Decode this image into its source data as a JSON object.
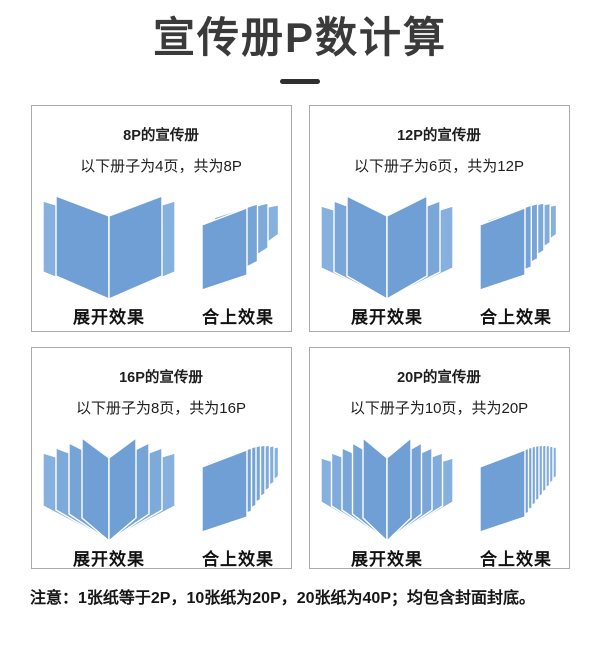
{
  "title": "宣传册P数计算",
  "panels": [
    {
      "heading": "8P的宣传册",
      "description": "以下册子为4页，共为8P",
      "open_label": "展开效果",
      "closed_label": "合上效果",
      "open_pages_per_side": 2,
      "closed_pages": 4
    },
    {
      "heading": "12P的宣传册",
      "description": "以下册子为6页，共为12P",
      "open_label": "展开效果",
      "closed_label": "合上效果",
      "open_pages_per_side": 3,
      "closed_pages": 6
    },
    {
      "heading": "16P的宣传册",
      "description": "以下册子为8页，共为16P",
      "open_label": "展开效果",
      "closed_label": "合上效果",
      "open_pages_per_side": 4,
      "closed_pages": 8
    },
    {
      "heading": "20P的宣传册",
      "description": "以下册子为10页，共为20P",
      "open_label": "展开效果",
      "closed_label": "合上效果",
      "open_pages_per_side": 5,
      "closed_pages": 10
    }
  ],
  "note": "注意：1张纸等于2P，10张纸为20P，20张纸为40P；均包含封面封底。",
  "colors": {
    "book_blue": "#6f9fd4",
    "panel_border": "#ababab",
    "title": "#3a3a3a",
    "page_gap": "#ffffff"
  }
}
